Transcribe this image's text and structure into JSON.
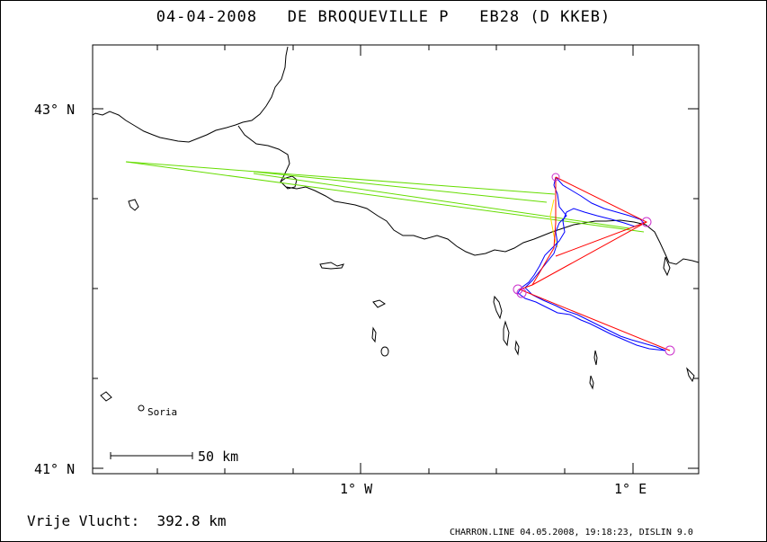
{
  "title": "04-04-2008   DE BROQUEVILLE P   EB28 (D KKEB)",
  "axes": {
    "lat_labels": [
      "43° N",
      "41° N"
    ],
    "lon_labels": [
      "1° W",
      "1° E"
    ]
  },
  "scale_bar": {
    "label": "50 km"
  },
  "city": {
    "name": "Soria"
  },
  "free_flight": {
    "label": "Vrije Vlucht:",
    "value": "392.8 km"
  },
  "footer": "CHARRON.LINE 04.05.2008, 19:18:23, DISLIN 9.0",
  "colors": {
    "coastline": "#000000",
    "track": "#0000ff",
    "task_lines": "#ff0000",
    "turnpoints": "#cc33cc",
    "engine_segments": "#66dd00",
    "leg_segment": "#ffdd00"
  }
}
